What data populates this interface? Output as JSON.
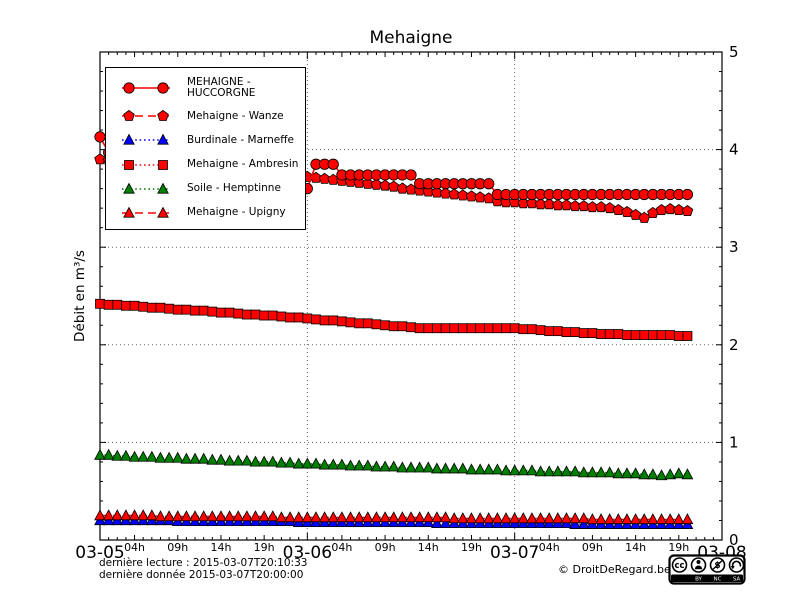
{
  "title": "Mehaigne",
  "ylabel": "Débit en m³/s",
  "footer": {
    "last_read": "dernière lecture : 2015-03-07T20:10:33",
    "last_data": "dernière donnée  2015-03-07T20:00:00",
    "copyright": "© DroitDeRegard.be",
    "license_cc_text": "cc",
    "license_labels": [
      "BY",
      "NC",
      "SA"
    ]
  },
  "axes": {
    "y_range": [
      0,
      5
    ],
    "y_ticks": [
      0,
      1,
      2,
      3,
      4,
      5
    ],
    "y_minor_step": 0.2,
    "x_range_hours": [
      0,
      72
    ],
    "day_labels": [
      {
        "label": "03-05",
        "t": 0
      },
      {
        "label": "03-06",
        "t": 24
      },
      {
        "label": "03-07",
        "t": 48
      },
      {
        "label": "03-08",
        "t": 72
      }
    ],
    "hour_labels": [
      {
        "label": "04h",
        "t": 4
      },
      {
        "label": "09h",
        "t": 9
      },
      {
        "label": "14h",
        "t": 14
      },
      {
        "label": "19h",
        "t": 19
      },
      {
        "label": "04h",
        "t": 28
      },
      {
        "label": "09h",
        "t": 33
      },
      {
        "label": "14h",
        "t": 38
      },
      {
        "label": "19h",
        "t": 43
      },
      {
        "label": "04h",
        "t": 52
      },
      {
        "label": "09h",
        "t": 57
      },
      {
        "label": "14h",
        "t": 62
      },
      {
        "label": "19h",
        "t": 67
      }
    ],
    "grid_h": [
      1,
      2,
      3,
      4
    ],
    "grid_v": [
      24,
      48
    ],
    "grid_on": true
  },
  "legend_order": [
    "huccorgne",
    "wanze",
    "marneffe",
    "ambresin",
    "hemptinne",
    "upigny"
  ],
  "chart_data": {
    "type": "line",
    "title": "Mehaigne",
    "ylabel": "Débit en m³/s",
    "ylim": [
      0,
      5
    ],
    "x_unit": "hours since 2015-03-05T00:00, hourly points ending 2015-03-07T20:00",
    "legend_position": "upper left",
    "series": [
      {
        "key": "marneffe",
        "name": "Burdinale - Marneffe",
        "color": "#0000ff",
        "marker": "triangle",
        "line": "dotted",
        "values": [
          0.2,
          0.2,
          0.2,
          0.2,
          0.2,
          0.2,
          0.2,
          0.2,
          0.2,
          0.19,
          0.19,
          0.19,
          0.19,
          0.19,
          0.19,
          0.19,
          0.19,
          0.19,
          0.19,
          0.19,
          0.19,
          0.19,
          0.19,
          0.18,
          0.18,
          0.18,
          0.18,
          0.18,
          0.18,
          0.18,
          0.18,
          0.18,
          0.18,
          0.18,
          0.18,
          0.18,
          0.18,
          0.18,
          0.18,
          0.17,
          0.17,
          0.17,
          0.17,
          0.17,
          0.17,
          0.17,
          0.17,
          0.17,
          0.17,
          0.17,
          0.17,
          0.17,
          0.17,
          0.17,
          0.17,
          0.16,
          0.16,
          0.16,
          0.16,
          0.16,
          0.16,
          0.16,
          0.16,
          0.16,
          0.16,
          0.16,
          0.16,
          0.16,
          0.16
        ]
      },
      {
        "key": "upigny",
        "name": "Mehaigne - Upigny",
        "color": "#ff0000",
        "marker": "triangle",
        "line": "dashed",
        "values": [
          0.25,
          0.25,
          0.25,
          0.25,
          0.25,
          0.25,
          0.25,
          0.24,
          0.24,
          0.24,
          0.24,
          0.24,
          0.24,
          0.24,
          0.24,
          0.24,
          0.24,
          0.24,
          0.24,
          0.24,
          0.24,
          0.23,
          0.23,
          0.23,
          0.23,
          0.23,
          0.23,
          0.23,
          0.23,
          0.23,
          0.23,
          0.23,
          0.23,
          0.23,
          0.23,
          0.23,
          0.23,
          0.23,
          0.23,
          0.23,
          0.23,
          0.22,
          0.22,
          0.22,
          0.22,
          0.22,
          0.22,
          0.22,
          0.22,
          0.22,
          0.22,
          0.22,
          0.22,
          0.22,
          0.22,
          0.22,
          0.22,
          0.21,
          0.21,
          0.21,
          0.21,
          0.21,
          0.21,
          0.21,
          0.21,
          0.21,
          0.21,
          0.21,
          0.21
        ]
      },
      {
        "key": "hemptinne",
        "name": "Soile - Hemptinne",
        "color": "#008000",
        "marker": "triangle",
        "line": "dotted",
        "values": [
          0.87,
          0.87,
          0.86,
          0.86,
          0.85,
          0.85,
          0.85,
          0.84,
          0.84,
          0.84,
          0.83,
          0.83,
          0.83,
          0.82,
          0.82,
          0.81,
          0.81,
          0.81,
          0.8,
          0.8,
          0.8,
          0.79,
          0.79,
          0.78,
          0.78,
          0.78,
          0.77,
          0.77,
          0.77,
          0.76,
          0.76,
          0.76,
          0.75,
          0.75,
          0.75,
          0.74,
          0.74,
          0.74,
          0.74,
          0.73,
          0.73,
          0.73,
          0.73,
          0.72,
          0.72,
          0.72,
          0.72,
          0.71,
          0.71,
          0.71,
          0.71,
          0.7,
          0.7,
          0.7,
          0.7,
          0.7,
          0.69,
          0.69,
          0.69,
          0.69,
          0.68,
          0.68,
          0.68,
          0.67,
          0.67,
          0.66,
          0.67,
          0.68,
          0.67
        ]
      },
      {
        "key": "ambresin",
        "name": "Mehaigne - Ambresin",
        "color": "#ff0000",
        "marker": "square",
        "line": "dotted",
        "values": [
          2.42,
          2.41,
          2.41,
          2.4,
          2.4,
          2.39,
          2.38,
          2.38,
          2.37,
          2.36,
          2.36,
          2.35,
          2.35,
          2.34,
          2.33,
          2.33,
          2.32,
          2.31,
          2.31,
          2.3,
          2.3,
          2.29,
          2.28,
          2.28,
          2.27,
          2.26,
          2.25,
          2.25,
          2.24,
          2.23,
          2.22,
          2.22,
          2.21,
          2.2,
          2.19,
          2.19,
          2.18,
          2.17,
          2.17,
          2.17,
          2.17,
          2.17,
          2.17,
          2.17,
          2.17,
          2.17,
          2.17,
          2.17,
          2.17,
          2.16,
          2.16,
          2.15,
          2.14,
          2.14,
          2.13,
          2.13,
          2.12,
          2.12,
          2.11,
          2.11,
          2.11,
          2.1,
          2.1,
          2.1,
          2.1,
          2.1,
          2.1,
          2.09,
          2.09
        ]
      },
      {
        "key": "wanze",
        "name": "Mehaigne - Wanze",
        "color": "#ff0000",
        "marker": "pentagon",
        "line": "dashed",
        "values": [
          3.9,
          3.89,
          3.89,
          3.88,
          3.87,
          3.87,
          3.86,
          3.85,
          3.84,
          3.84,
          3.83,
          3.82,
          3.82,
          3.81,
          3.8,
          3.8,
          3.79,
          3.78,
          3.77,
          3.77,
          3.76,
          3.75,
          3.75,
          3.74,
          3.72,
          3.71,
          3.7,
          3.69,
          3.68,
          3.67,
          3.66,
          3.65,
          3.64,
          3.63,
          3.62,
          3.6,
          3.59,
          3.58,
          3.57,
          3.56,
          3.55,
          3.54,
          3.53,
          3.52,
          3.51,
          3.5,
          3.47,
          3.46,
          3.46,
          3.45,
          3.45,
          3.44,
          3.44,
          3.43,
          3.43,
          3.42,
          3.42,
          3.41,
          3.41,
          3.4,
          3.38,
          3.36,
          3.33,
          3.3,
          3.35,
          3.38,
          3.39,
          3.38,
          3.37
        ]
      },
      {
        "key": "huccorgne",
        "name": "MEHAIGNE - HUCCORGNE",
        "color": "#ff0000",
        "marker": "circle",
        "line": "solid",
        "values": [
          4.13,
          3.97,
          3.87,
          3.86,
          3.85,
          3.83,
          3.82,
          3.81,
          3.8,
          3.79,
          3.77,
          3.76,
          3.75,
          3.74,
          3.73,
          3.71,
          3.7,
          3.69,
          3.68,
          3.67,
          3.65,
          3.64,
          3.63,
          3.62,
          3.6,
          3.85,
          3.85,
          3.85,
          3.74,
          3.74,
          3.74,
          3.74,
          3.74,
          3.74,
          3.74,
          3.74,
          3.74,
          3.65,
          3.65,
          3.65,
          3.65,
          3.65,
          3.65,
          3.65,
          3.65,
          3.65,
          3.54,
          3.54,
          3.54,
          3.54,
          3.54,
          3.54,
          3.54,
          3.54,
          3.54,
          3.54,
          3.54,
          3.54,
          3.54,
          3.54,
          3.54,
          3.54,
          3.54,
          3.54,
          3.54,
          3.54,
          3.54,
          3.54,
          3.54
        ]
      }
    ]
  }
}
